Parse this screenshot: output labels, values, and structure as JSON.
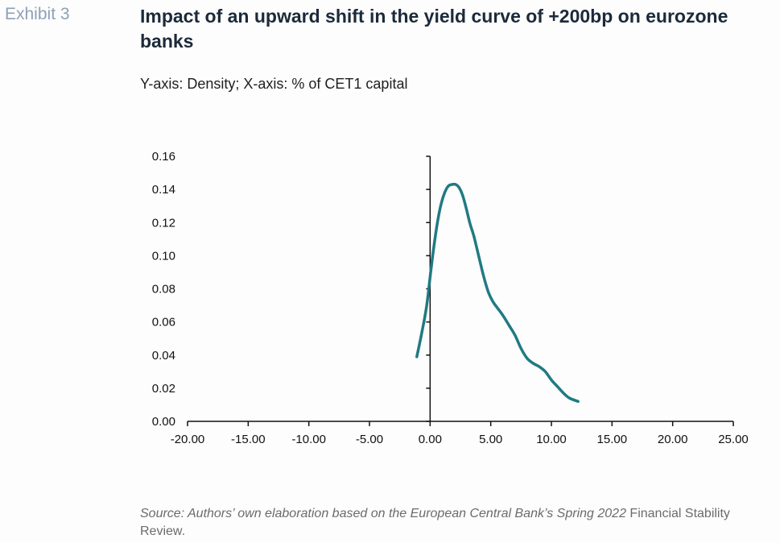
{
  "exhibit_label": "Exhibit 3",
  "title": "Impact of an upward shift in the yield curve of +200bp on eurozone banks",
  "subtitle": "Y-axis: Density; X-axis: % of CET1 capital",
  "source": {
    "italic": "Source: Authors’ own elaboration based on the European Central Bank’s Spring 2022",
    "plain": "Financial Stability Review."
  },
  "colors": {
    "line": "#217a82",
    "axis": "#111111",
    "text": "#111111"
  },
  "chart_data": {
    "type": "line",
    "xlim": [
      -20,
      25
    ],
    "ylim": [
      0,
      0.16
    ],
    "x_ticks": [
      "-20.00",
      "-15.00",
      "-10.00",
      "-5.00",
      "0.00",
      "5.00",
      "10.00",
      "15.00",
      "20.00",
      "25.00"
    ],
    "y_ticks": [
      "0.00",
      "0.02",
      "0.04",
      "0.06",
      "0.08",
      "0.10",
      "0.12",
      "0.14",
      "0.16"
    ],
    "grid": false,
    "legend": "none",
    "series": [
      {
        "x": [
          -1.1,
          -0.7,
          -0.3,
          0.0,
          0.3,
          0.6,
          0.9,
          1.2,
          1.5,
          1.8,
          2.1,
          2.4,
          2.7,
          3.0,
          3.3,
          3.6,
          4.0,
          4.4,
          4.8,
          5.2,
          5.6,
          6.0,
          6.5,
          7.0,
          7.5,
          8.0,
          8.5,
          9.0,
          9.5,
          10.0,
          10.5,
          11.0,
          11.5,
          12.2
        ],
        "y": [
          0.039,
          0.053,
          0.069,
          0.087,
          0.105,
          0.12,
          0.131,
          0.138,
          0.142,
          0.143,
          0.143,
          0.141,
          0.136,
          0.128,
          0.119,
          0.112,
          0.1,
          0.088,
          0.078,
          0.072,
          0.068,
          0.064,
          0.058,
          0.052,
          0.044,
          0.038,
          0.035,
          0.033,
          0.03,
          0.025,
          0.021,
          0.017,
          0.014,
          0.012
        ]
      }
    ]
  }
}
